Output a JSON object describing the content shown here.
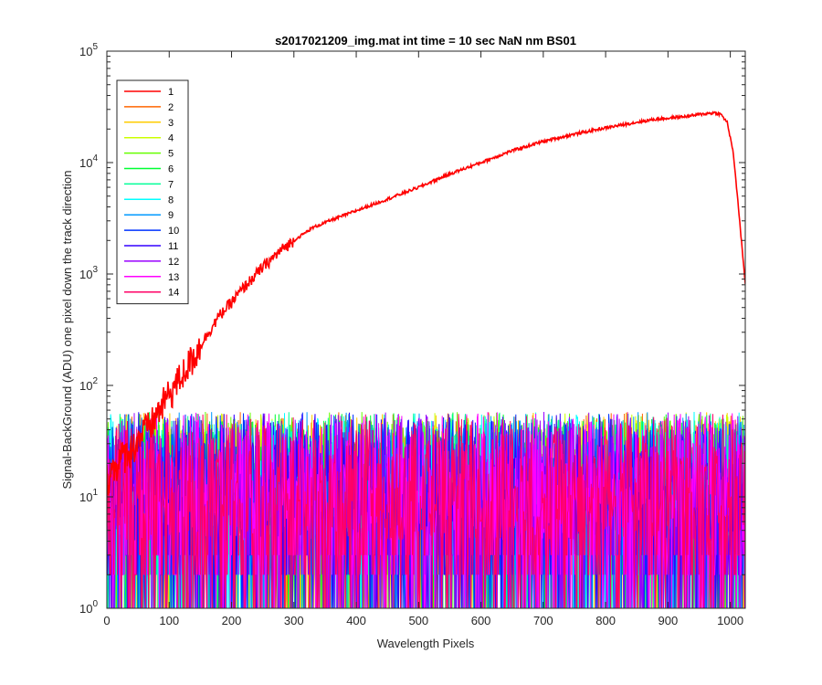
{
  "chart_data": {
    "type": "line",
    "title": "s2017021209_img.mat int time = 10 sec  NaN nm BS01",
    "xlabel": "Wavelength Pixels",
    "ylabel": "Signal-BackGround (ADU) one pixel down the track direction",
    "xlim": [
      0,
      1024
    ],
    "ylim": [
      1,
      100000
    ],
    "yscale": "log",
    "grid": false,
    "legend_position": "top-left",
    "x_ticks": [
      "0",
      "100",
      "200",
      "300",
      "400",
      "500",
      "600",
      "700",
      "800",
      "900",
      "1000"
    ],
    "y_ticks": [
      {
        "base": "10",
        "exp": "0"
      },
      {
        "base": "10",
        "exp": "1"
      },
      {
        "base": "10",
        "exp": "2"
      },
      {
        "base": "10",
        "exp": "3"
      },
      {
        "base": "10",
        "exp": "4"
      },
      {
        "base": "10",
        "exp": "5"
      }
    ],
    "series": [
      {
        "name": "1",
        "color": "#ff0000",
        "kind": "signal",
        "points": [
          [
            0,
            15
          ],
          [
            10,
            18
          ],
          [
            20,
            22
          ],
          [
            30,
            25
          ],
          [
            40,
            28
          ],
          [
            50,
            33
          ],
          [
            60,
            40
          ],
          [
            70,
            45
          ],
          [
            80,
            55
          ],
          [
            90,
            70
          ],
          [
            100,
            85
          ],
          [
            120,
            125
          ],
          [
            140,
            190
          ],
          [
            160,
            280
          ],
          [
            180,
            420
          ],
          [
            200,
            560
          ],
          [
            220,
            760
          ],
          [
            250,
            1150
          ],
          [
            280,
            1650
          ],
          [
            300,
            2000
          ],
          [
            330,
            2600
          ],
          [
            360,
            3050
          ],
          [
            400,
            3700
          ],
          [
            450,
            4700
          ],
          [
            500,
            6000
          ],
          [
            550,
            7900
          ],
          [
            600,
            10000
          ],
          [
            650,
            12800
          ],
          [
            700,
            15500
          ],
          [
            750,
            18000
          ],
          [
            800,
            20500
          ],
          [
            850,
            23000
          ],
          [
            880,
            24500
          ],
          [
            900,
            25000
          ],
          [
            930,
            26000
          ],
          [
            960,
            27500
          ],
          [
            975,
            28000
          ],
          [
            985,
            27000
          ],
          [
            995,
            23000
          ],
          [
            1005,
            12000
          ],
          [
            1015,
            3000
          ],
          [
            1024,
            800
          ]
        ]
      },
      {
        "name": "2",
        "color": "#ff6600",
        "kind": "noise"
      },
      {
        "name": "3",
        "color": "#ffcc00",
        "kind": "noise"
      },
      {
        "name": "4",
        "color": "#ccff00",
        "kind": "noise"
      },
      {
        "name": "5",
        "color": "#66ff00",
        "kind": "noise"
      },
      {
        "name": "6",
        "color": "#00ff33",
        "kind": "noise"
      },
      {
        "name": "7",
        "color": "#00ff99",
        "kind": "noise"
      },
      {
        "name": "8",
        "color": "#00ffff",
        "kind": "noise"
      },
      {
        "name": "9",
        "color": "#0099ff",
        "kind": "noise"
      },
      {
        "name": "10",
        "color": "#0033ff",
        "kind": "noise"
      },
      {
        "name": "11",
        "color": "#3300ff",
        "kind": "noise"
      },
      {
        "name": "12",
        "color": "#9900ff",
        "kind": "noise"
      },
      {
        "name": "13",
        "color": "#ff00ff",
        "kind": "noise"
      },
      {
        "name": "14",
        "color": "#ff0066",
        "kind": "noise"
      }
    ],
    "noise_band": {
      "low": 1,
      "high": 50,
      "typical": 12
    }
  }
}
